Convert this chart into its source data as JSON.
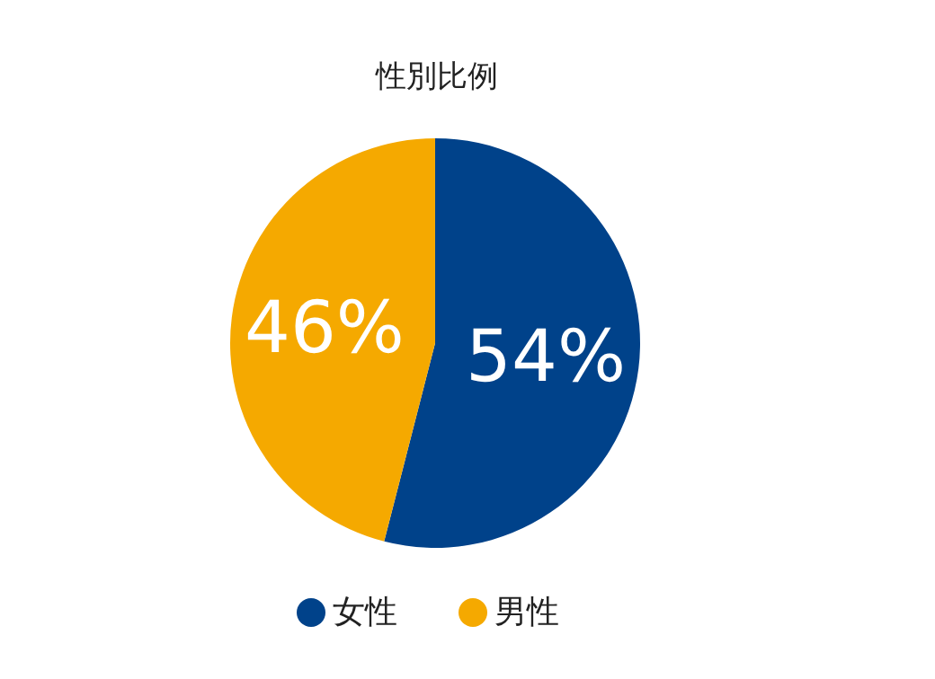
{
  "chart_data": {
    "type": "pie",
    "title": "性別比例",
    "categories": [
      "女性",
      "男性"
    ],
    "values": [
      54,
      46
    ],
    "colors": [
      "#00428a",
      "#f5a900"
    ],
    "value_labels": [
      "54%",
      "46%"
    ],
    "legend": "bottom"
  }
}
